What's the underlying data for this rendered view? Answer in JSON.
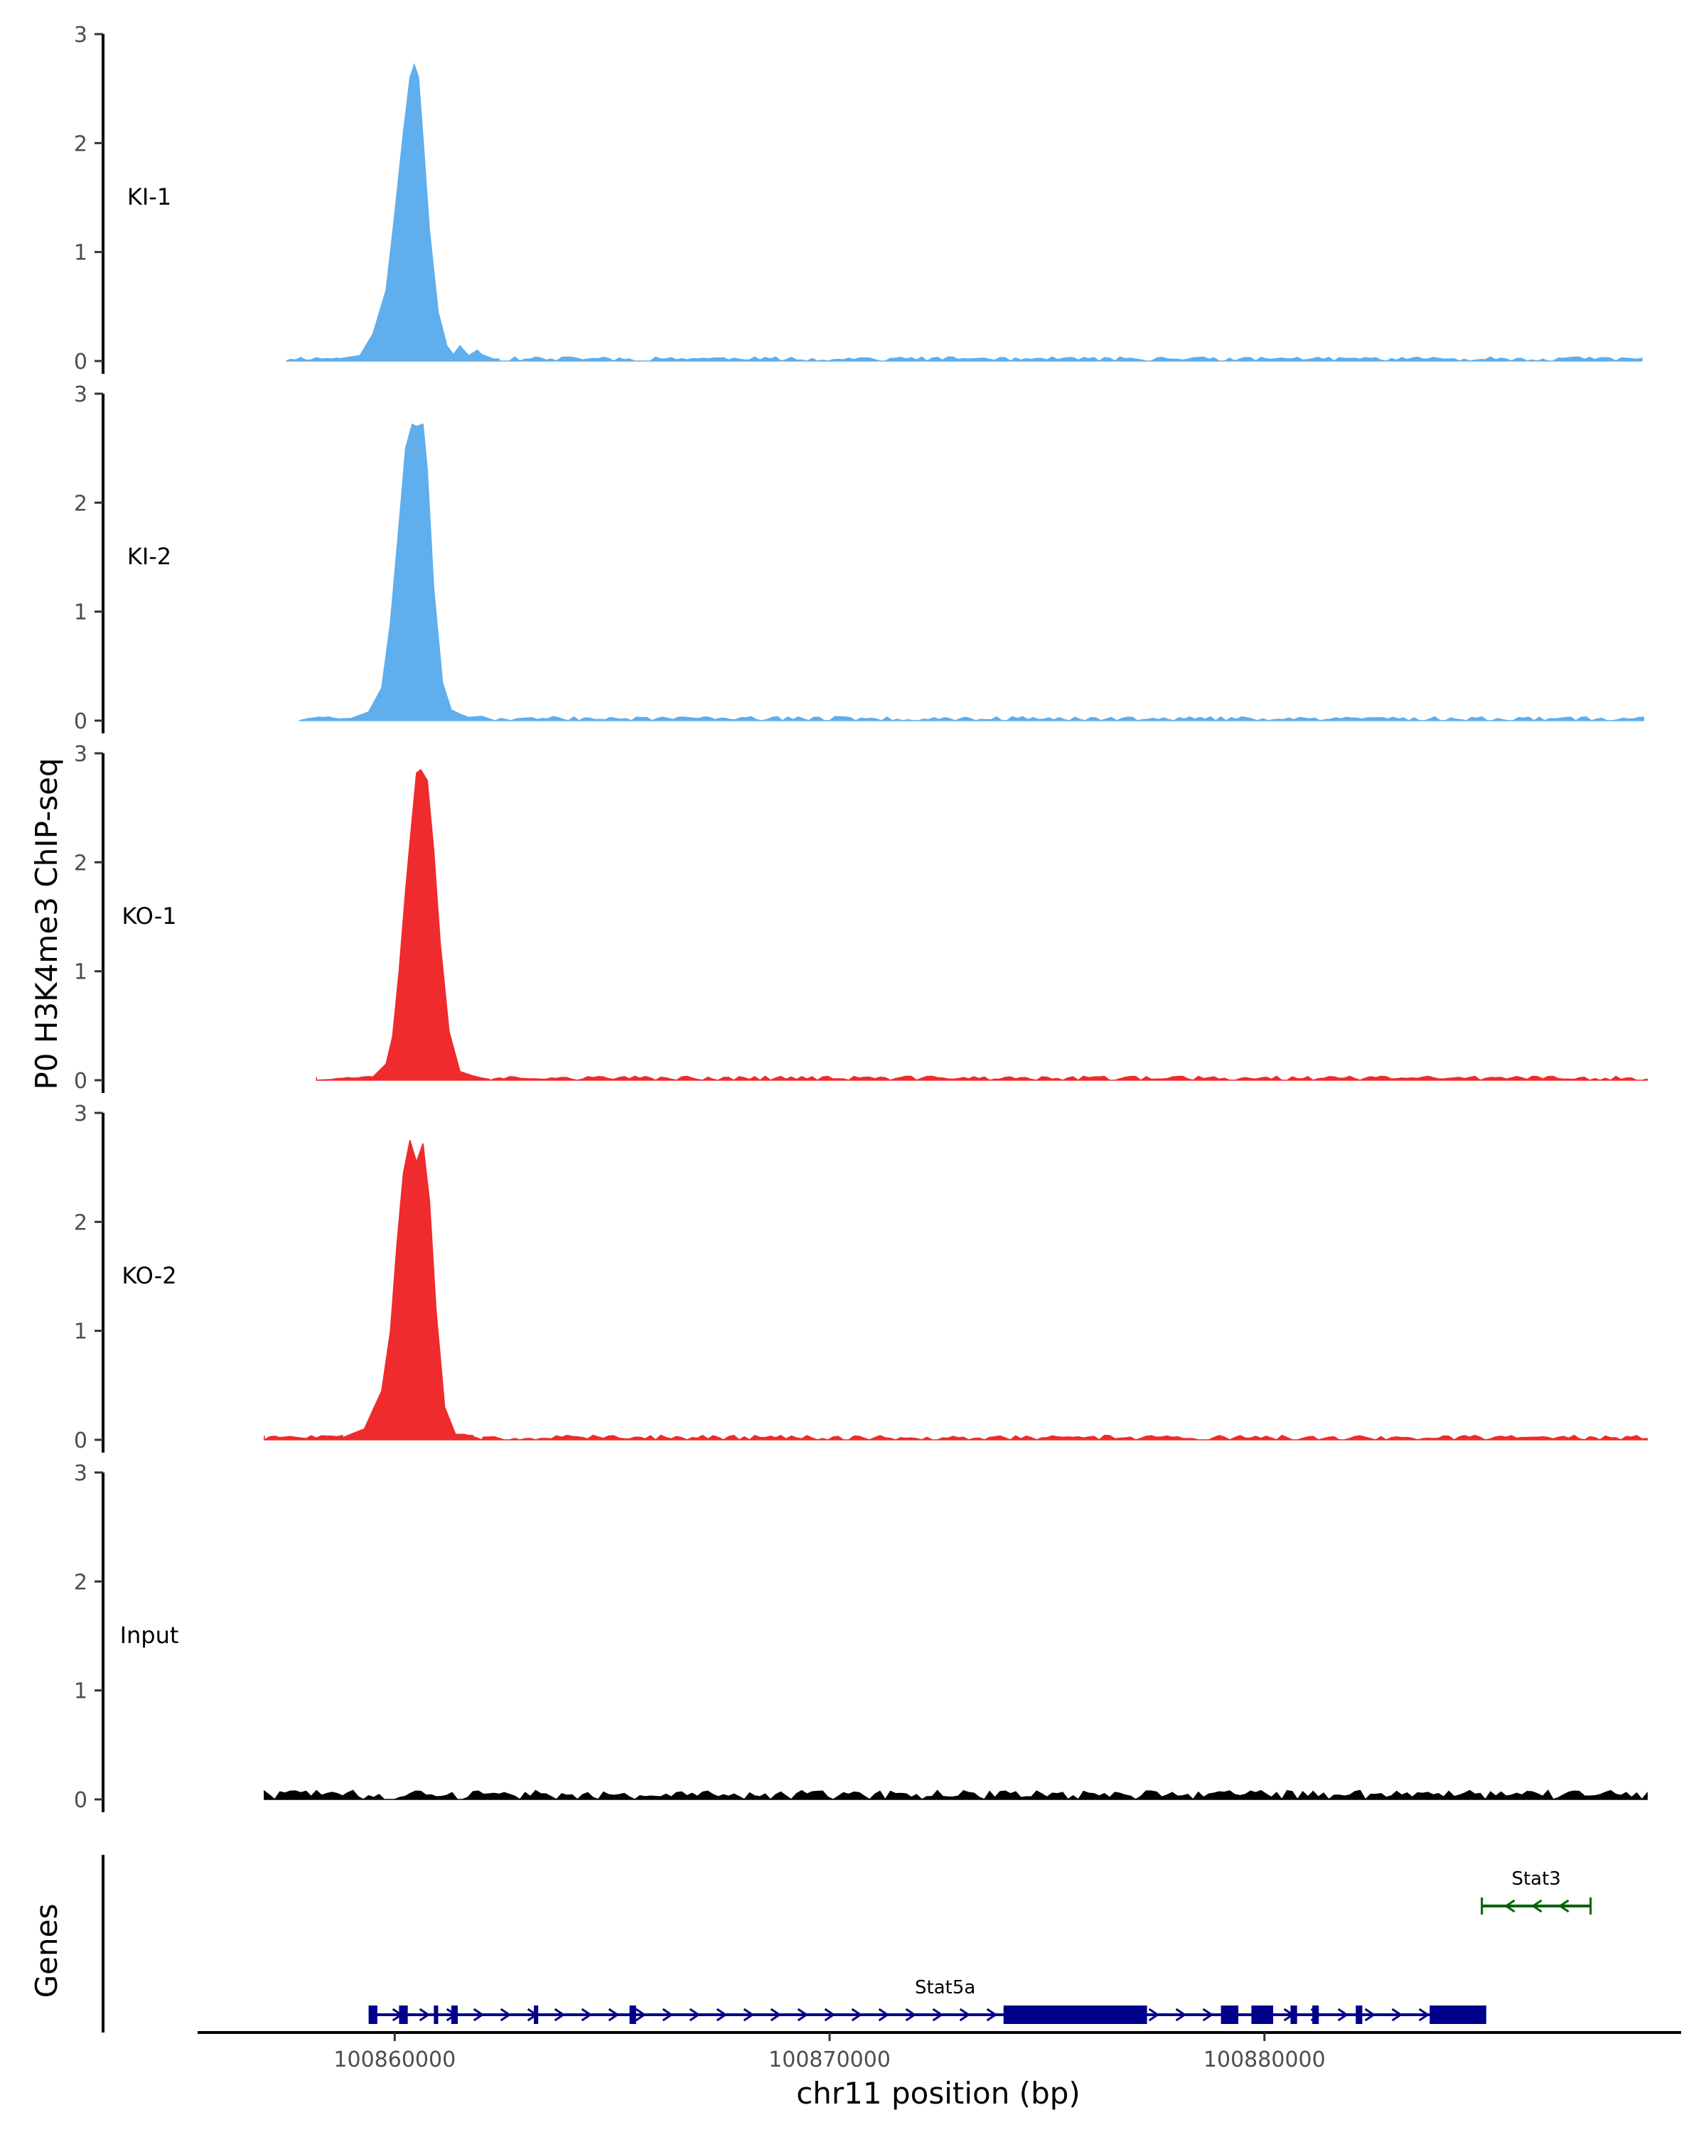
{
  "chart_data": {
    "type": "area",
    "title": "",
    "ylabel": "P0 H3K4me3 ChIP-seq",
    "xlabel": "chr11 position (bp)",
    "xlim": [
      100855500,
      100889500
    ],
    "ylim": [
      0,
      3
    ],
    "yticks": [
      0,
      1,
      2,
      3
    ],
    "xticks": [
      100860000,
      100870000,
      100880000
    ],
    "grid": false,
    "legend": "none",
    "tracks": [
      {
        "name": "KI-1",
        "color": "#5faeed",
        "peak": {
          "x": 100860500,
          "height": 2.72,
          "split": 0
        },
        "x": [
          100857500,
          100858700,
          100859200,
          100859500,
          100859800,
          100860000,
          100860200,
          100860350,
          100860450,
          100860550,
          100860650,
          100860800,
          100861000,
          100861200,
          100861350,
          100861500,
          100861700,
          100861900,
          100862000,
          100862200,
          100862400
        ],
        "y": [
          0,
          0.02,
          0.05,
          0.25,
          0.65,
          1.35,
          2.1,
          2.6,
          2.72,
          2.6,
          2.05,
          1.2,
          0.45,
          0.14,
          0.06,
          0.14,
          0.05,
          0.1,
          0.06,
          0.03,
          0
        ],
        "noise": {
          "start": 100857600,
          "end": 100888700,
          "amplitude": 0.025,
          "seed": 11
        }
      },
      {
        "name": "KI-2",
        "color": "#5faeed",
        "peak": {
          "x": 100860500,
          "height": 2.72,
          "split": 0
        },
        "x": [
          100857800,
          100859000,
          100859400,
          100859700,
          100859900,
          100860100,
          100860250,
          100860400,
          100860500,
          100860650,
          100860750,
          100860900,
          100861100,
          100861300,
          100861500,
          100861700,
          100862000,
          100862300
        ],
        "y": [
          0,
          0.02,
          0.08,
          0.3,
          0.9,
          1.8,
          2.5,
          2.72,
          2.7,
          2.72,
          2.3,
          1.2,
          0.35,
          0.1,
          0.06,
          0.03,
          0.04,
          0
        ],
        "noise": {
          "start": 100858000,
          "end": 100888800,
          "amplitude": 0.025,
          "seed": 23
        }
      },
      {
        "name": "KO-1",
        "color": "#ef2b2d",
        "peak": {
          "x": 100860600,
          "height": 2.85,
          "split": 0
        },
        "x": [
          100858200,
          100859500,
          100859800,
          100859950,
          100860100,
          100860250,
          100860400,
          100860500,
          100860600,
          100860750,
          100860900,
          100861050,
          100861250,
          100861500,
          100861800,
          100862200
        ],
        "y": [
          0,
          0.03,
          0.15,
          0.4,
          1.0,
          1.75,
          2.4,
          2.82,
          2.85,
          2.75,
          2.1,
          1.25,
          0.45,
          0.08,
          0.04,
          0
        ],
        "noise": {
          "start": 100858200,
          "end": 100888800,
          "amplitude": 0.025,
          "seed": 37
        }
      },
      {
        "name": "KO-2",
        "color": "#ef2b2d",
        "peak": {
          "x": 100860500,
          "height": 2.75,
          "split": 0.2
        },
        "x": [
          100857000,
          100858800,
          100859300,
          100859700,
          100859900,
          100860050,
          100860200,
          100860350,
          100860500,
          100860650,
          100860800,
          100860950,
          100861150,
          100861400,
          100861600,
          100861800,
          100862000
        ],
        "y": [
          0,
          0.02,
          0.1,
          0.45,
          1.0,
          1.8,
          2.45,
          2.75,
          2.55,
          2.72,
          2.2,
          1.2,
          0.3,
          0.05,
          0.05,
          0.03,
          0
        ],
        "noise": {
          "start": 100857000,
          "end": 100888800,
          "amplitude": 0.028,
          "seed": 51
        }
      },
      {
        "name": "Input",
        "color": "#000000",
        "peak": null,
        "x": [],
        "y": [],
        "noise": {
          "start": 100857000,
          "end": 100888800,
          "amplitude": 0.055,
          "seed": 73
        }
      }
    ],
    "genes_track": {
      "ylabel": "Genes",
      "genes": [
        {
          "name": "Stat5a",
          "strand": "+",
          "color": "#00008b",
          "start": 100859400,
          "end": 100885100,
          "exons": [
            [
              100859400,
              100859600
            ],
            [
              100860100,
              100860300
            ],
            [
              100860900,
              100861000
            ],
            [
              100861300,
              100861450
            ],
            [
              100863200,
              100863300
            ],
            [
              100865400,
              100865550
            ],
            [
              100874000,
              100877300
            ],
            [
              100879000,
              100879400
            ],
            [
              100879700,
              100880200
            ],
            [
              100880600,
              100880750
            ],
            [
              100881100,
              100881250
            ],
            [
              100882100,
              100882250
            ],
            [
              100883800,
              100885100
            ]
          ]
        },
        {
          "name": "Stat3",
          "strand": "-",
          "color": "#006400",
          "start": 100885000,
          "end": 100887500,
          "exons": []
        }
      ]
    }
  }
}
